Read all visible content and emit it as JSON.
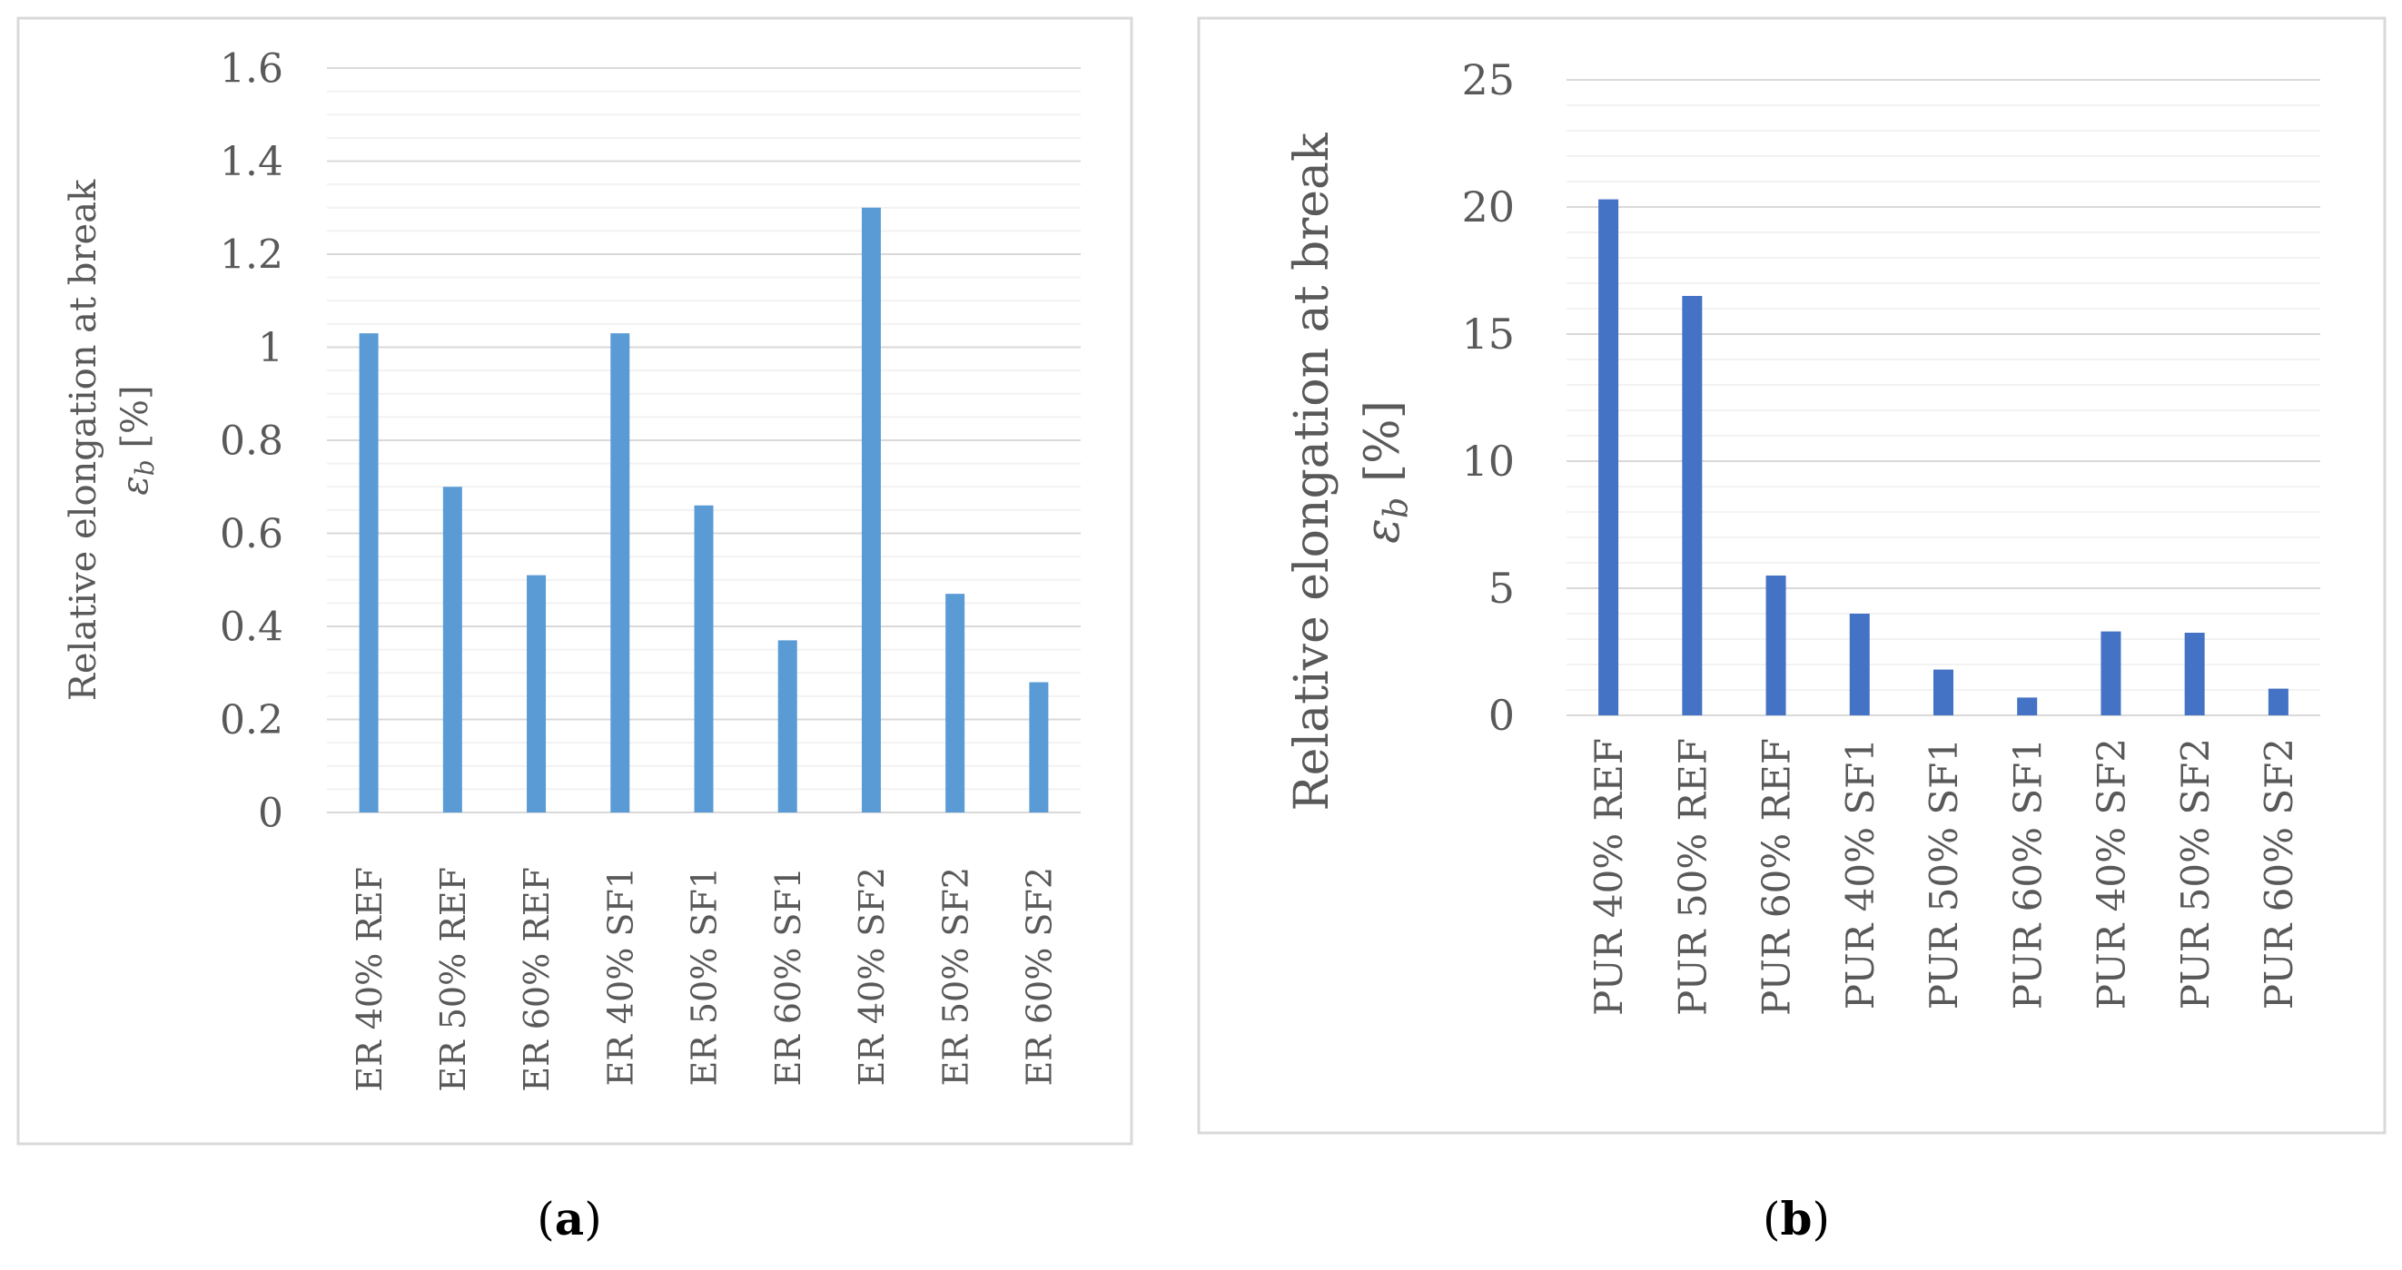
{
  "chart_data": [
    {
      "type": "bar",
      "panel_label": "a",
      "ylabel_line1": "Relative elongation at break",
      "ylabel_line2_symbol": "ε",
      "ylabel_line2_sub": "b",
      "ylabel_line2_unit": " [%]",
      "categories": [
        "ER 40% REF",
        "ER 50% REF",
        "ER 60% REF",
        "ER 40% SF1",
        "ER 50% SF1",
        "ER 60% SF1",
        "ER 40% SF2",
        "ER 50% SF2",
        "ER 60% SF2"
      ],
      "values": [
        1.03,
        0.7,
        0.51,
        1.03,
        0.66,
        0.37,
        1.3,
        0.47,
        0.28
      ],
      "ylim": [
        0,
        1.6
      ],
      "yticks": [
        0,
        0.2,
        0.4,
        0.6,
        0.8,
        1,
        1.2,
        1.4,
        1.6
      ],
      "ytick_labels": [
        "0",
        "0.2",
        "0.4",
        "0.6",
        "0.8",
        "1",
        "1.2",
        "1.4",
        "1.6"
      ],
      "minor_grid_step": 0.05,
      "grid": true,
      "bar_color": "#5b9bd5"
    },
    {
      "type": "bar",
      "panel_label": "b",
      "ylabel_line1": "Relative elongation at break",
      "ylabel_line2_symbol": "ε",
      "ylabel_line2_sub": "b",
      "ylabel_line2_unit": " [%]",
      "categories": [
        "PUR 40% REF",
        "PUR 50% REF",
        "PUR 60% REF",
        "PUR 40% SF1",
        "PUR 50% SF1",
        "PUR 60% SF1",
        "PUR 40% SF2",
        "PUR 50% SF2",
        "PUR 60% SF2"
      ],
      "values": [
        20.3,
        16.5,
        5.5,
        4.0,
        1.8,
        0.7,
        3.3,
        3.25,
        1.05
      ],
      "ylim": [
        0,
        25
      ],
      "yticks": [
        0,
        5,
        10,
        15,
        20,
        25
      ],
      "ytick_labels": [
        "0",
        "5",
        "10",
        "15",
        "20",
        "25"
      ],
      "minor_grid_step": 1,
      "grid": true,
      "bar_color": "#4472c4"
    }
  ]
}
